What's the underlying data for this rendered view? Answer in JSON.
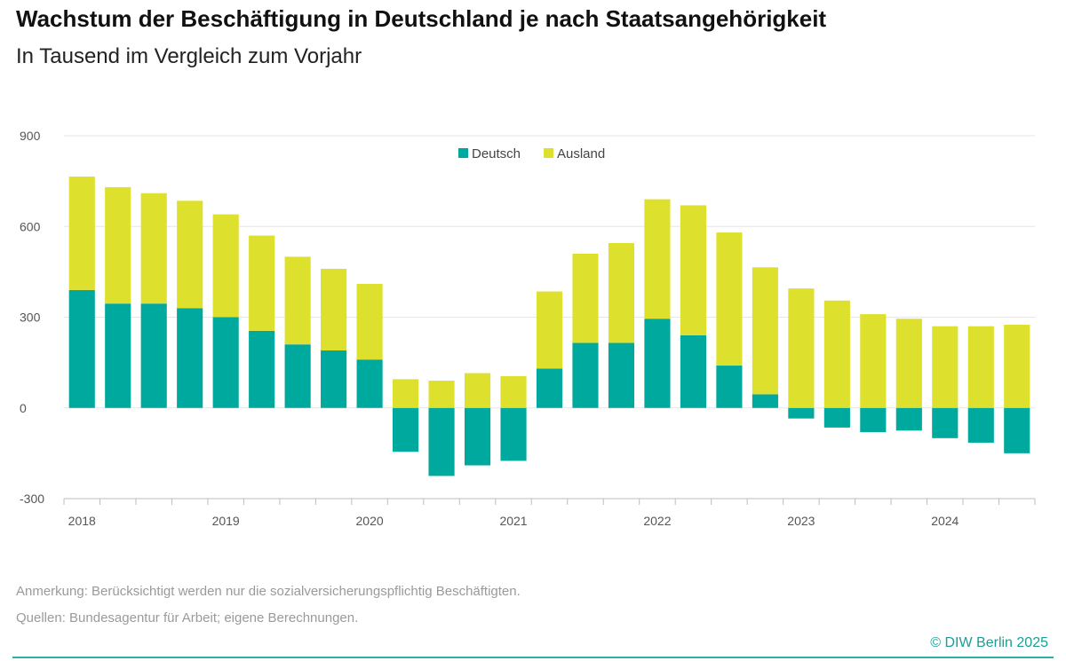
{
  "header": {
    "title": "Wachstum der Beschäftigung in Deutschland je nach Staatsangehörigkeit",
    "subtitle": "In Tausend im Vergleich zum Vorjahr"
  },
  "footer": {
    "note": "Anmerkung: Berücksichtigt werden nur die sozialversicherungspflichtig Beschäftigten.",
    "source": "Quellen: Bundesagentur für Arbeit; eigene Berechnungen.",
    "credit": "© DIW Berlin 2025"
  },
  "colors": {
    "deutsch": "#00a99d",
    "ausland": "#dde12e",
    "grid": "#e6e6e6",
    "axis": "#bdbdbd",
    "tick_text": "#555555"
  },
  "chart_data": {
    "type": "bar",
    "stacked": true,
    "title": "Wachstum der Beschäftigung in Deutschland je nach Staatsangehörigkeit",
    "subtitle": "In Tausend im Vergleich zum Vorjahr",
    "xlabel": "",
    "ylabel": "",
    "ylim": [
      -300,
      900
    ],
    "yticks": [
      -300,
      0,
      300,
      600,
      900
    ],
    "grid": true,
    "legend_position": "top-center",
    "year_labels": [
      "2018",
      "2019",
      "2020",
      "2021",
      "2022",
      "2023",
      "2024"
    ],
    "categories": [
      "2018 Q1",
      "2018 Q2",
      "2018 Q3",
      "2018 Q4",
      "2019 Q1",
      "2019 Q2",
      "2019 Q3",
      "2019 Q4",
      "2020 Q1",
      "2020 Q2",
      "2020 Q3",
      "2020 Q4",
      "2021 Q1",
      "2021 Q2",
      "2021 Q3",
      "2021 Q4",
      "2022 Q1",
      "2022 Q2",
      "2022 Q3",
      "2022 Q4",
      "2023 Q1",
      "2023 Q2",
      "2023 Q3",
      "2023 Q4",
      "2024 Q1",
      "2024 Q2",
      "2024 Q3"
    ],
    "series": [
      {
        "name": "Deutsch",
        "values": [
          390,
          345,
          345,
          330,
          300,
          255,
          210,
          190,
          160,
          -145,
          -225,
          -190,
          -175,
          130,
          215,
          215,
          295,
          240,
          140,
          45,
          -35,
          -65,
          -80,
          -75,
          -100,
          -115,
          -150
        ]
      },
      {
        "name": "Ausland",
        "values": [
          375,
          385,
          365,
          355,
          340,
          315,
          290,
          270,
          250,
          95,
          90,
          115,
          105,
          255,
          295,
          330,
          395,
          430,
          440,
          420,
          395,
          355,
          310,
          295,
          270,
          270,
          275
        ]
      }
    ]
  }
}
